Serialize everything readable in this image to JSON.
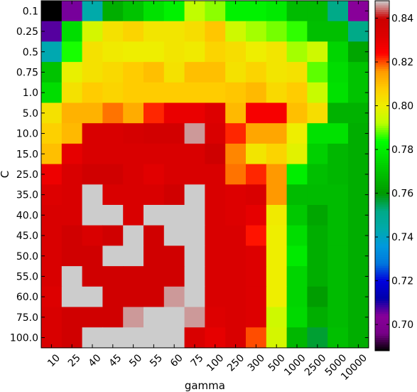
{
  "chart_data": {
    "type": "heatmap",
    "title": "",
    "xlabel": "gamma",
    "ylabel": "C",
    "x_categories": [
      "10",
      "25",
      "40",
      "45",
      "50",
      "55",
      "60",
      "75",
      "100",
      "250",
      "300",
      "500",
      "1000",
      "2500",
      "5000",
      "10000"
    ],
    "y_categories": [
      "0.1",
      "0.25",
      "0.5",
      "0.75",
      "1.0",
      "5.0",
      "10.0",
      "15.0",
      "25.0",
      "35.0",
      "40.0",
      "45.0",
      "50.0",
      "55.0",
      "60.0",
      "75.0",
      "100.0"
    ],
    "colorbar": {
      "colormap": "nipy_spectral",
      "range": [
        0.688,
        0.848
      ],
      "ticks": [
        "0.70",
        "0.72",
        "0.74",
        "0.76",
        "0.78",
        "0.80",
        "0.82",
        "0.84"
      ],
      "tick_values": [
        0.7,
        0.72,
        0.74,
        0.76,
        0.78,
        0.8,
        0.82,
        0.84
      ]
    },
    "values": [
      [
        0.688,
        0.705,
        0.744,
        0.765,
        0.77,
        0.777,
        0.781,
        0.793,
        0.79,
        0.781,
        0.781,
        0.779,
        0.768,
        0.768,
        0.752,
        0.704
      ],
      [
        0.707,
        0.776,
        0.796,
        0.803,
        0.806,
        0.802,
        0.802,
        0.804,
        0.809,
        0.795,
        0.791,
        0.789,
        0.786,
        0.769,
        0.769,
        0.752
      ],
      [
        0.743,
        0.785,
        0.803,
        0.801,
        0.8,
        0.8,
        0.802,
        0.801,
        0.806,
        0.804,
        0.8,
        0.802,
        0.791,
        0.795,
        0.774,
        0.763
      ],
      [
        0.77,
        0.799,
        0.803,
        0.805,
        0.808,
        0.81,
        0.803,
        0.81,
        0.81,
        0.803,
        0.806,
        0.802,
        0.803,
        0.788,
        0.776,
        0.77
      ],
      [
        0.776,
        0.803,
        0.808,
        0.806,
        0.808,
        0.808,
        0.808,
        0.808,
        0.808,
        0.809,
        0.811,
        0.805,
        0.808,
        0.794,
        0.777,
        0.77
      ],
      [
        0.803,
        0.812,
        0.812,
        0.818,
        0.813,
        0.822,
        0.829,
        0.829,
        0.832,
        0.811,
        0.826,
        0.826,
        0.81,
        0.804,
        0.766,
        0.766
      ],
      [
        0.807,
        0.811,
        0.834,
        0.834,
        0.836,
        0.837,
        0.837,
        0.846,
        0.834,
        0.822,
        0.814,
        0.814,
        0.8,
        0.777,
        0.777,
        0.765
      ],
      [
        0.81,
        0.83,
        0.834,
        0.834,
        0.834,
        0.834,
        0.834,
        0.834,
        0.839,
        0.817,
        0.802,
        0.806,
        0.798,
        0.773,
        0.767,
        0.765
      ],
      [
        0.828,
        0.834,
        0.838,
        0.838,
        0.834,
        0.831,
        0.834,
        0.834,
        0.834,
        0.818,
        0.822,
        0.816,
        0.78,
        0.769,
        0.767,
        0.765
      ],
      [
        0.832,
        0.834,
        0.85,
        0.834,
        0.834,
        0.834,
        0.838,
        0.853,
        0.834,
        0.832,
        0.834,
        0.816,
        0.768,
        0.768,
        0.768,
        0.765
      ],
      [
        0.834,
        0.834,
        0.85,
        0.85,
        0.834,
        0.85,
        0.85,
        0.85,
        0.834,
        0.832,
        0.83,
        0.801,
        0.771,
        0.763,
        0.768,
        0.765
      ],
      [
        0.834,
        0.838,
        0.834,
        0.838,
        0.85,
        0.838,
        0.85,
        0.85,
        0.834,
        0.834,
        0.823,
        0.8,
        0.776,
        0.765,
        0.768,
        0.765
      ],
      [
        0.834,
        0.838,
        0.838,
        0.85,
        0.85,
        0.838,
        0.838,
        0.853,
        0.834,
        0.834,
        0.832,
        0.8,
        0.779,
        0.765,
        0.768,
        0.765
      ],
      [
        0.834,
        0.85,
        0.838,
        0.838,
        0.838,
        0.838,
        0.838,
        0.856,
        0.834,
        0.834,
        0.832,
        0.8,
        0.774,
        0.765,
        0.768,
        0.765
      ],
      [
        0.832,
        0.85,
        0.85,
        0.838,
        0.838,
        0.838,
        0.846,
        0.856,
        0.834,
        0.834,
        0.832,
        0.8,
        0.774,
        0.761,
        0.768,
        0.765
      ],
      [
        0.834,
        0.838,
        0.838,
        0.838,
        0.846,
        0.853,
        0.858,
        0.846,
        0.832,
        0.834,
        0.832,
        0.795,
        0.775,
        0.765,
        0.768,
        0.765
      ],
      [
        0.834,
        0.838,
        0.853,
        0.853,
        0.853,
        0.853,
        0.853,
        0.834,
        0.83,
        0.834,
        0.82,
        0.796,
        0.767,
        0.757,
        0.769,
        0.765
      ]
    ]
  }
}
